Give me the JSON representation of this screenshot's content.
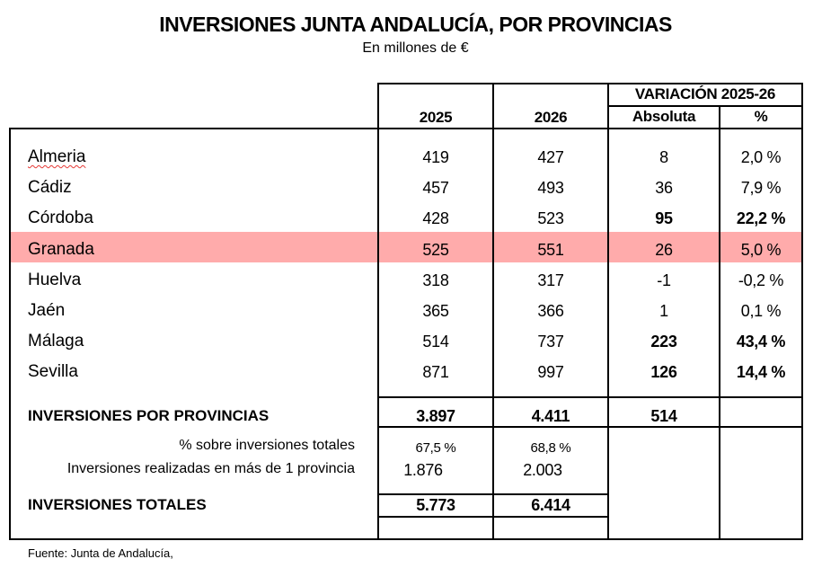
{
  "title": "INVERSIONES JUNTA ANDALUCÍA, POR PROVINCIAS",
  "subtitle": "En millones de €",
  "header": {
    "y2025": "2025",
    "y2026": "2026",
    "variation": "VARIACIÓN 2025-26",
    "absolute": "Absoluta",
    "percent": "%"
  },
  "highlight_color": "#ffabab",
  "rows": [
    {
      "name": "Almeria",
      "v2025": "419",
      "v2026": "427",
      "abs": "8",
      "pct": "2,0 %",
      "bold": false,
      "spell": true
    },
    {
      "name": "Cádiz",
      "v2025": "457",
      "v2026": "493",
      "abs": "36",
      "pct": "7,9 %",
      "bold": false
    },
    {
      "name": "Córdoba",
      "v2025": "428",
      "v2026": "523",
      "abs": "95",
      "pct": "22,2 %",
      "bold": true
    },
    {
      "name": "Granada",
      "v2025": "525",
      "v2026": "551",
      "abs": "26",
      "pct": "5,0 %",
      "bold": false,
      "highlight": true
    },
    {
      "name": "Huelva",
      "v2025": "318",
      "v2026": "317",
      "abs": "-1",
      "pct": "-0,2 %",
      "bold": false
    },
    {
      "name": "Jaén",
      "v2025": "365",
      "v2026": "366",
      "abs": "1",
      "pct": "0,1 %",
      "bold": false
    },
    {
      "name": "Málaga",
      "v2025": "514",
      "v2026": "737",
      "abs": "223",
      "pct": "43,4 %",
      "bold": true
    },
    {
      "name": "Sevilla",
      "v2025": "871",
      "v2026": "997",
      "abs": "126",
      "pct": "14,4 %",
      "bold": true
    }
  ],
  "by_province": {
    "label": "INVERSIONES POR PROVINCIAS",
    "v2025": "3.897",
    "v2026": "4.411",
    "abs": "514"
  },
  "share": {
    "label": "% sobre inversiones totales",
    "v2025": "67,5 %",
    "v2026": "68,8 %"
  },
  "multi": {
    "label": "Inversiones realizadas en más de 1 provincia",
    "v2025": "1.876",
    "v2026": "2.003"
  },
  "totals": {
    "label": "INVERSIONES TOTALES",
    "v2025": "5.773",
    "v2026": "6.414"
  },
  "source": "Fuente: Junta de Andalucía,"
}
